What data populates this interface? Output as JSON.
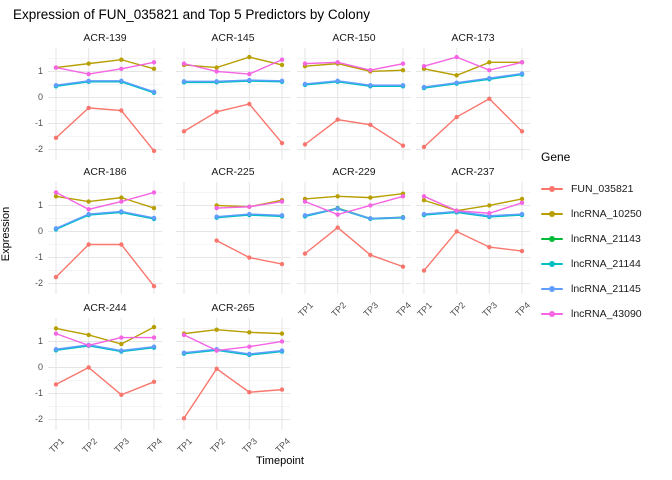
{
  "title": "Expression of FUN_035821 and Top 5 Predictors by Colony",
  "axes": {
    "x_label": "Timepoint",
    "y_label": "Expression",
    "x_ticks": [
      "TP1",
      "TP2",
      "TP3",
      "TP4"
    ],
    "y_ticks": [
      1,
      0,
      -1,
      -2
    ]
  },
  "legend": {
    "title": "Gene",
    "entries": [
      {
        "label": "FUN_035821",
        "color": "#F8766D"
      },
      {
        "label": "lncRNA_10250",
        "color": "#B79F00"
      },
      {
        "label": "lncRNA_21143",
        "color": "#00BA38"
      },
      {
        "label": "lncRNA_21144",
        "color": "#00BFC4"
      },
      {
        "label": "lncRNA_21145",
        "color": "#619CFF"
      },
      {
        "label": "lncRNA_43090",
        "color": "#F564E3"
      }
    ]
  },
  "chart_data": {
    "type": "line",
    "faceted_by": "Colony",
    "x": [
      "TP1",
      "TP2",
      "TP3",
      "TP4"
    ],
    "ylabel": "Expression",
    "xlabel": "Timepoint",
    "y_domain": [
      -2.4,
      1.9
    ],
    "y_major_gridlines": [
      1,
      0,
      -1,
      -2
    ],
    "y_minor_gridlines": [
      1.5,
      0.5,
      -0.5,
      -1.5
    ],
    "grid": true,
    "legend_position": "right",
    "series_colors": {
      "FUN_035821": "#F8766D",
      "lncRNA_10250": "#B79F00",
      "lncRNA_21143": "#00BA38",
      "lncRNA_21144": "#00BFC4",
      "lncRNA_21145": "#619CFF",
      "lncRNA_43090": "#F564E3"
    },
    "facets": [
      {
        "name": "ACR-139",
        "series": {
          "FUN_035821": [
            -1.55,
            -0.4,
            -0.5,
            -2.05
          ],
          "lncRNA_10250": [
            1.15,
            1.3,
            1.45,
            1.1
          ],
          "lncRNA_21143": [
            0.45,
            0.62,
            0.62,
            0.2
          ],
          "lncRNA_21144": [
            0.43,
            0.6,
            0.6,
            0.18
          ],
          "lncRNA_21145": [
            0.47,
            0.64,
            0.64,
            0.22
          ],
          "lncRNA_43090": [
            1.15,
            0.9,
            1.1,
            1.35
          ]
        }
      },
      {
        "name": "ACR-145",
        "series": {
          "FUN_035821": [
            -1.3,
            -0.55,
            -0.25,
            -1.75
          ],
          "lncRNA_10250": [
            1.25,
            1.15,
            1.55,
            1.25
          ],
          "lncRNA_21143": [
            0.6,
            0.6,
            0.65,
            0.62
          ],
          "lncRNA_21144": [
            0.58,
            0.58,
            0.63,
            0.6
          ],
          "lncRNA_21145": [
            0.62,
            0.62,
            0.67,
            0.64
          ],
          "lncRNA_43090": [
            1.3,
            1.0,
            0.9,
            1.45
          ]
        }
      },
      {
        "name": "ACR-150",
        "series": {
          "FUN_035821": [
            -1.8,
            -0.85,
            -1.05,
            -1.85
          ],
          "lncRNA_10250": [
            1.2,
            1.3,
            1.0,
            1.05
          ],
          "lncRNA_21143": [
            0.5,
            0.62,
            0.45,
            0.45
          ],
          "lncRNA_21144": [
            0.48,
            0.6,
            0.43,
            0.43
          ],
          "lncRNA_21145": [
            0.52,
            0.64,
            0.47,
            0.47
          ],
          "lncRNA_43090": [
            1.3,
            1.35,
            1.05,
            1.3
          ]
        }
      },
      {
        "name": "ACR-173",
        "series": {
          "FUN_035821": [
            -1.9,
            -0.75,
            -0.05,
            -1.3
          ],
          "lncRNA_10250": [
            1.1,
            0.85,
            1.35,
            1.35
          ],
          "lncRNA_21143": [
            0.38,
            0.55,
            0.72,
            0.9
          ],
          "lncRNA_21144": [
            0.36,
            0.53,
            0.7,
            0.88
          ],
          "lncRNA_21145": [
            0.4,
            0.57,
            0.74,
            0.92
          ],
          "lncRNA_43090": [
            1.2,
            1.55,
            1.05,
            1.35
          ]
        }
      },
      {
        "name": "ACR-186",
        "series": {
          "FUN_035821": [
            -1.75,
            -0.5,
            -0.5,
            -2.1
          ],
          "lncRNA_10250": [
            1.35,
            1.15,
            1.3,
            0.9
          ],
          "lncRNA_21143": [
            0.1,
            0.65,
            0.75,
            0.5
          ],
          "lncRNA_21144": [
            0.08,
            0.63,
            0.73,
            0.48
          ],
          "lncRNA_21145": [
            0.12,
            0.67,
            0.77,
            0.52
          ],
          "lncRNA_43090": [
            1.5,
            0.85,
            1.15,
            1.5
          ]
        }
      },
      {
        "name": "ACR-225",
        "series": {
          "FUN_035821": [
            null,
            -0.35,
            -1.0,
            -1.25
          ],
          "lncRNA_10250": [
            null,
            1.0,
            0.95,
            1.2
          ],
          "lncRNA_21143": [
            null,
            0.55,
            0.65,
            0.6
          ],
          "lncRNA_21144": [
            null,
            0.53,
            0.63,
            0.58
          ],
          "lncRNA_21145": [
            null,
            0.57,
            0.67,
            0.62
          ],
          "lncRNA_43090": [
            null,
            0.9,
            0.95,
            1.15
          ]
        }
      },
      {
        "name": "ACR-229",
        "series": {
          "FUN_035821": [
            -0.85,
            0.15,
            -0.9,
            -1.35
          ],
          "lncRNA_10250": [
            1.25,
            1.35,
            1.3,
            1.45
          ],
          "lncRNA_21143": [
            0.6,
            0.9,
            0.5,
            0.55
          ],
          "lncRNA_21144": [
            0.58,
            0.87,
            0.48,
            0.52
          ],
          "lncRNA_21145": [
            0.62,
            0.88,
            0.5,
            0.54
          ],
          "lncRNA_43090": [
            1.15,
            0.65,
            1.0,
            1.35
          ]
        }
      },
      {
        "name": "ACR-237",
        "series": {
          "FUN_035821": [
            -1.5,
            0.0,
            -0.6,
            -0.75
          ],
          "lncRNA_10250": [
            1.2,
            0.8,
            1.0,
            1.25
          ],
          "lncRNA_21143": [
            0.65,
            0.75,
            0.58,
            0.65
          ],
          "lncRNA_21144": [
            0.63,
            0.73,
            0.56,
            0.63
          ],
          "lncRNA_21145": [
            0.67,
            0.77,
            0.6,
            0.67
          ],
          "lncRNA_43090": [
            1.35,
            0.8,
            0.7,
            1.1
          ]
        }
      },
      {
        "name": "ACR-244",
        "series": {
          "FUN_035821": [
            -0.65,
            0.0,
            -1.05,
            -0.55
          ],
          "lncRNA_10250": [
            1.5,
            1.25,
            0.9,
            1.55
          ],
          "lncRNA_21143": [
            0.68,
            0.85,
            0.63,
            0.78
          ],
          "lncRNA_21144": [
            0.66,
            0.83,
            0.61,
            0.76
          ],
          "lncRNA_21145": [
            0.7,
            0.87,
            0.65,
            0.8
          ],
          "lncRNA_43090": [
            1.3,
            0.85,
            1.15,
            1.15
          ]
        }
      },
      {
        "name": "ACR-265",
        "series": {
          "FUN_035821": [
            -1.95,
            -0.05,
            -0.95,
            -0.85
          ],
          "lncRNA_10250": [
            1.3,
            1.45,
            1.35,
            1.3
          ],
          "lncRNA_21143": [
            0.55,
            0.68,
            0.5,
            0.63
          ],
          "lncRNA_21144": [
            0.53,
            0.66,
            0.48,
            0.61
          ],
          "lncRNA_21145": [
            0.57,
            0.7,
            0.52,
            0.65
          ],
          "lncRNA_43090": [
            1.25,
            0.65,
            0.8,
            1.0
          ]
        }
      }
    ]
  }
}
